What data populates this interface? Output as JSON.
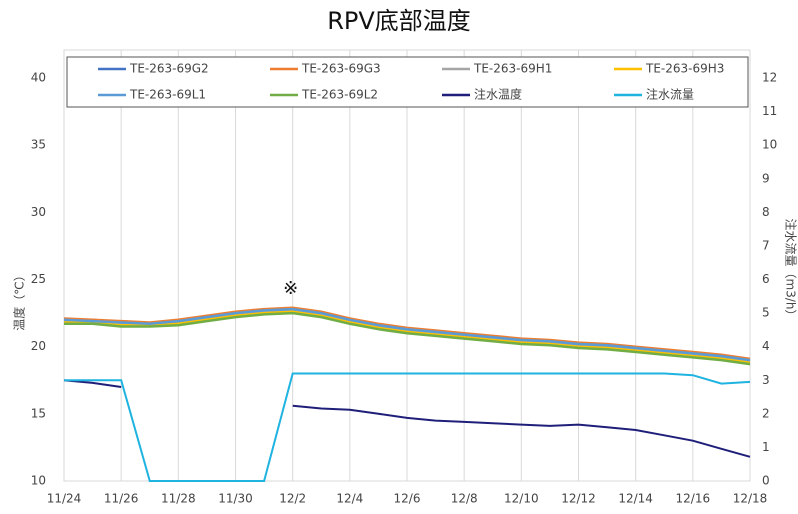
{
  "chart_data": {
    "type": "line",
    "title": "RPV底部温度",
    "y_label": "温度（℃）",
    "y2_label": "注水流量（m3/h）",
    "annotation": "※",
    "x": [
      "11/24",
      "11/25",
      "11/26",
      "11/27",
      "11/28",
      "11/29",
      "11/30",
      "12/1",
      "12/2",
      "12/3",
      "12/4",
      "12/5",
      "12/6",
      "12/7",
      "12/8",
      "12/9",
      "12/10",
      "12/11",
      "12/12",
      "12/13",
      "12/14",
      "12/15",
      "12/16",
      "12/17",
      "12/18"
    ],
    "xticks": [
      "11/24",
      "11/26",
      "11/28",
      "11/30",
      "12/2",
      "12/4",
      "12/6",
      "12/8",
      "12/10",
      "12/12",
      "12/14",
      "12/16",
      "12/18"
    ],
    "ylim": [
      10,
      40
    ],
    "yticks": [
      10,
      15,
      20,
      25,
      30,
      35,
      40
    ],
    "y2lim": [
      0,
      12
    ],
    "y2ticks": [
      0,
      1,
      2,
      3,
      4,
      5,
      6,
      7,
      8,
      9,
      10,
      11,
      12
    ],
    "grid": "x",
    "legend": "top",
    "series": [
      {
        "name": "TE-263-69G2",
        "color": "#4472c4",
        "values": [
          22.0,
          22.0,
          21.8,
          21.7,
          21.9,
          22.2,
          22.5,
          22.7,
          22.8,
          22.5,
          22.0,
          21.6,
          21.3,
          21.1,
          20.9,
          20.7,
          20.5,
          20.4,
          20.2,
          20.1,
          19.9,
          19.7,
          19.5,
          19.3,
          19.0
        ]
      },
      {
        "name": "TE-263-69G3",
        "color": "#ed7d31",
        "values": [
          22.1,
          22.0,
          21.9,
          21.8,
          22.0,
          22.3,
          22.6,
          22.8,
          22.9,
          22.6,
          22.1,
          21.7,
          21.4,
          21.2,
          21.0,
          20.8,
          20.6,
          20.5,
          20.3,
          20.2,
          20.0,
          19.8,
          19.6,
          19.4,
          19.1
        ]
      },
      {
        "name": "TE-263-69H1",
        "color": "#a5a5a5",
        "values": [
          21.9,
          21.9,
          21.7,
          21.6,
          21.8,
          22.1,
          22.4,
          22.6,
          22.7,
          22.4,
          21.9,
          21.5,
          21.2,
          21.0,
          20.8,
          20.6,
          20.4,
          20.3,
          20.1,
          20.0,
          19.8,
          19.6,
          19.4,
          19.2,
          18.9
        ]
      },
      {
        "name": "TE-263-69H3",
        "color": "#ffc000",
        "values": [
          21.8,
          21.8,
          21.6,
          21.6,
          21.7,
          22.0,
          22.3,
          22.5,
          22.6,
          22.3,
          21.8,
          21.4,
          21.1,
          20.9,
          20.7,
          20.5,
          20.3,
          20.2,
          20.0,
          19.9,
          19.7,
          19.5,
          19.3,
          19.1,
          18.8
        ]
      },
      {
        "name": "TE-263-69L1",
        "color": "#5b9bd5",
        "values": [
          22.0,
          21.9,
          21.8,
          21.7,
          21.9,
          22.2,
          22.5,
          22.7,
          22.8,
          22.5,
          22.0,
          21.6,
          21.3,
          21.1,
          20.9,
          20.7,
          20.5,
          20.4,
          20.2,
          20.1,
          19.9,
          19.7,
          19.5,
          19.3,
          19.0
        ]
      },
      {
        "name": "TE-263-69L2",
        "color": "#70ad47",
        "values": [
          21.7,
          21.7,
          21.5,
          21.5,
          21.6,
          21.9,
          22.2,
          22.4,
          22.5,
          22.2,
          21.7,
          21.3,
          21.0,
          20.8,
          20.6,
          20.4,
          20.2,
          20.1,
          19.9,
          19.8,
          19.6,
          19.4,
          19.2,
          19.0,
          18.7
        ]
      },
      {
        "name": "注水温度",
        "color": "#1f1f7a",
        "values": [
          17.5,
          17.3,
          17.0,
          null,
          null,
          null,
          null,
          null,
          15.6,
          15.4,
          15.3,
          15.0,
          14.7,
          14.5,
          14.4,
          14.3,
          14.2,
          14.1,
          14.2,
          14.0,
          13.8,
          13.4,
          13.0,
          12.4,
          11.8
        ]
      },
      {
        "name": "注水流量",
        "color": "#1fb3e0",
        "axis": "y2",
        "values": [
          3.0,
          3.0,
          3.0,
          0,
          0,
          0,
          0,
          0,
          3.2,
          3.2,
          3.2,
          3.2,
          3.2,
          3.2,
          3.2,
          3.2,
          3.2,
          3.2,
          3.2,
          3.2,
          3.2,
          3.2,
          3.15,
          2.9,
          2.95
        ]
      }
    ]
  }
}
